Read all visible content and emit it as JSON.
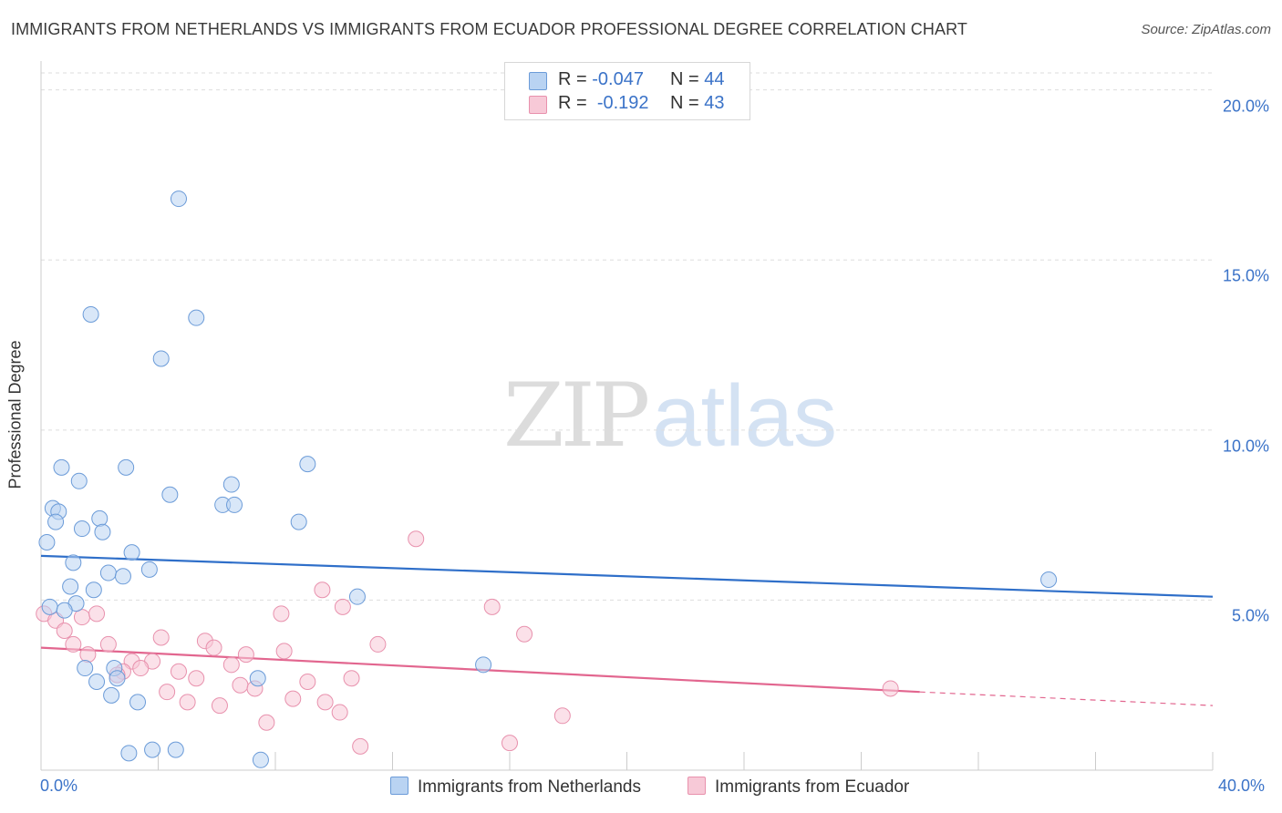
{
  "title": "IMMIGRANTS FROM NETHERLANDS VS IMMIGRANTS FROM ECUADOR PROFESSIONAL DEGREE CORRELATION CHART",
  "source": "Source: ZipAtlas.com",
  "watermark": {
    "zip": "ZIP",
    "atlas": "atlas"
  },
  "legend_top": {
    "rows": [
      {
        "r_label": "R =",
        "r_value": "-0.047",
        "n_label": "N =",
        "n_value": "44"
      },
      {
        "r_label": "R =",
        "r_value": "-0.192",
        "n_label": "N =",
        "n_value": "43"
      }
    ]
  },
  "colors": {
    "netherlands_fill": "#b9d3f2",
    "netherlands_stroke": "#6b9bd8",
    "netherlands_line": "#2f6fc9",
    "ecuador_fill": "#f7c9d7",
    "ecuador_stroke": "#e891ad",
    "ecuador_line": "#e2668f",
    "tick_text": "#3b73c8",
    "grid": "#dddddd"
  },
  "chart_data": {
    "type": "scatter",
    "title": "IMMIGRANTS FROM NETHERLANDS VS IMMIGRANTS FROM ECUADOR PROFESSIONAL DEGREE CORRELATION CHART",
    "xlabel": "",
    "ylabel": "Professional Degree",
    "xlim": [
      0,
      40
    ],
    "ylim": [
      0,
      20.5
    ],
    "x_tick_labels": [
      "0.0%",
      "40.0%"
    ],
    "y_ticks": [
      5,
      10,
      15,
      20
    ],
    "y_tick_labels": [
      "5.0%",
      "10.0%",
      "15.0%",
      "20.0%"
    ],
    "grid": true,
    "legend_position": "bottom",
    "series": [
      {
        "name": "Immigrants from Netherlands",
        "R": -0.047,
        "N": 44,
        "trend": {
          "x": [
            0,
            40
          ],
          "y": [
            6.3,
            5.1
          ]
        },
        "points": [
          [
            0.3,
            4.8
          ],
          [
            4.7,
            16.8
          ],
          [
            1.7,
            13.4
          ],
          [
            5.3,
            13.3
          ],
          [
            4.1,
            12.1
          ],
          [
            0.7,
            8.9
          ],
          [
            2.9,
            8.9
          ],
          [
            9.1,
            9.0
          ],
          [
            1.3,
            8.5
          ],
          [
            6.5,
            8.4
          ],
          [
            4.4,
            8.1
          ],
          [
            6.2,
            7.8
          ],
          [
            6.6,
            7.8
          ],
          [
            0.4,
            7.7
          ],
          [
            0.6,
            7.6
          ],
          [
            2.0,
            7.4
          ],
          [
            0.5,
            7.3
          ],
          [
            8.8,
            7.3
          ],
          [
            1.4,
            7.1
          ],
          [
            2.1,
            7.0
          ],
          [
            0.2,
            6.7
          ],
          [
            3.1,
            6.4
          ],
          [
            1.1,
            6.1
          ],
          [
            3.7,
            5.9
          ],
          [
            2.3,
            5.8
          ],
          [
            2.8,
            5.7
          ],
          [
            34.4,
            5.6
          ],
          [
            1.0,
            5.4
          ],
          [
            1.8,
            5.3
          ],
          [
            10.8,
            5.1
          ],
          [
            1.2,
            4.9
          ],
          [
            0.8,
            4.7
          ],
          [
            15.1,
            3.1
          ],
          [
            1.5,
            3.0
          ],
          [
            2.5,
            3.0
          ],
          [
            7.4,
            2.7
          ],
          [
            2.6,
            2.7
          ],
          [
            1.9,
            2.6
          ],
          [
            2.4,
            2.2
          ],
          [
            3.3,
            2.0
          ],
          [
            3.0,
            0.5
          ],
          [
            3.8,
            0.6
          ],
          [
            4.6,
            0.6
          ],
          [
            7.5,
            0.3
          ]
        ]
      },
      {
        "name": "Immigrants from Ecuador",
        "R": -0.192,
        "N": 43,
        "trend": {
          "x": [
            0,
            30
          ],
          "y": [
            3.6,
            2.3
          ]
        },
        "trend_dashed": {
          "x": [
            30,
            40
          ],
          "y": [
            2.3,
            1.9
          ]
        },
        "points": [
          [
            0.1,
            4.6
          ],
          [
            0.5,
            4.4
          ],
          [
            1.4,
            4.5
          ],
          [
            1.9,
            4.6
          ],
          [
            12.8,
            6.8
          ],
          [
            9.6,
            5.3
          ],
          [
            15.4,
            4.8
          ],
          [
            10.3,
            4.8
          ],
          [
            8.2,
            4.6
          ],
          [
            16.5,
            4.0
          ],
          [
            0.8,
            4.1
          ],
          [
            4.1,
            3.9
          ],
          [
            5.6,
            3.8
          ],
          [
            1.1,
            3.7
          ],
          [
            2.3,
            3.7
          ],
          [
            11.5,
            3.7
          ],
          [
            5.9,
            3.6
          ],
          [
            8.3,
            3.5
          ],
          [
            1.6,
            3.4
          ],
          [
            7.0,
            3.4
          ],
          [
            3.1,
            3.2
          ],
          [
            3.8,
            3.2
          ],
          [
            6.5,
            3.1
          ],
          [
            2.8,
            2.9
          ],
          [
            3.4,
            3.0
          ],
          [
            4.7,
            2.9
          ],
          [
            2.6,
            2.8
          ],
          [
            5.3,
            2.7
          ],
          [
            10.6,
            2.7
          ],
          [
            9.1,
            2.6
          ],
          [
            6.8,
            2.5
          ],
          [
            4.3,
            2.3
          ],
          [
            7.3,
            2.4
          ],
          [
            29.0,
            2.4
          ],
          [
            8.6,
            2.1
          ],
          [
            9.7,
            2.0
          ],
          [
            5.0,
            2.0
          ],
          [
            6.1,
            1.9
          ],
          [
            10.2,
            1.7
          ],
          [
            17.8,
            1.6
          ],
          [
            7.7,
            1.4
          ],
          [
            16.0,
            0.8
          ],
          [
            10.9,
            0.7
          ]
        ]
      }
    ]
  }
}
